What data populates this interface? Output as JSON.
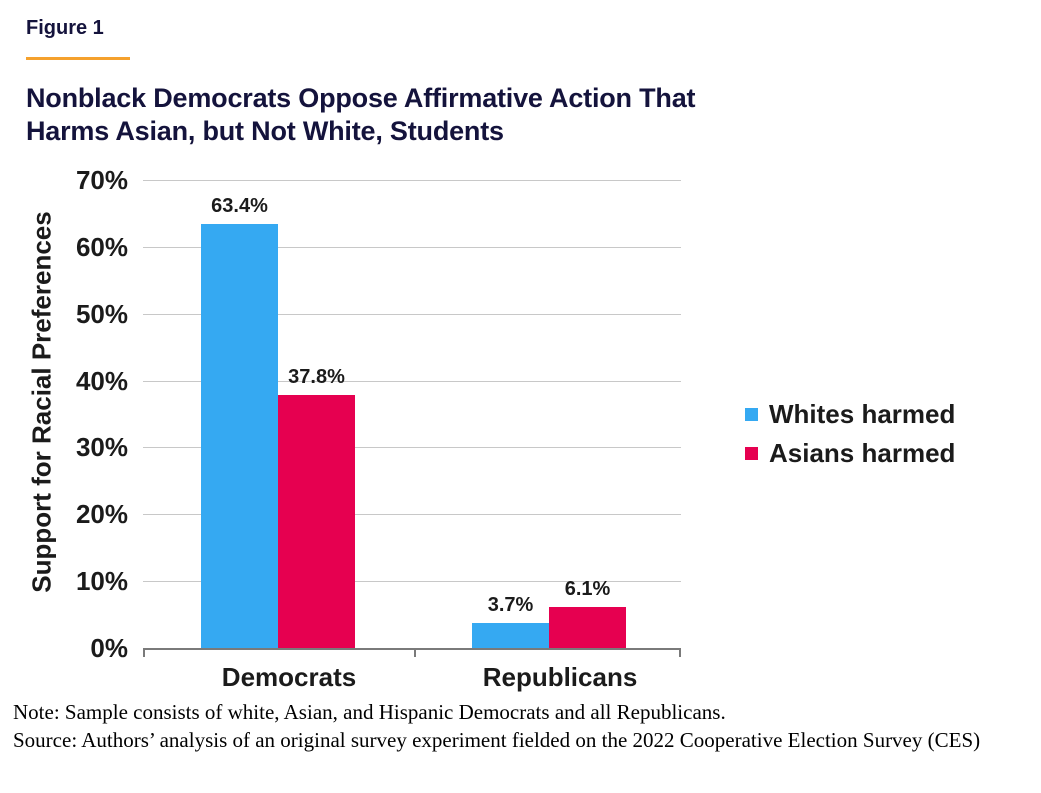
{
  "figure_label": "Figure 1",
  "title_lines": [
    "Nonblack Democrats Oppose Affirmative Action That",
    "Harms Asian, but Not White, Students"
  ],
  "chart_data": {
    "type": "bar",
    "title": "Nonblack Democrats Oppose Affirmative Action That Harms Asian, but Not White, Students",
    "categories": [
      "Democrats",
      "Republicans"
    ],
    "series": [
      {
        "name": "Whites harmed",
        "color": "#35a9f2",
        "values": [
          63.4,
          3.7
        ],
        "labels": [
          "63.4%",
          "3.7%"
        ]
      },
      {
        "name": "Asians harmed",
        "color": "#e60050",
        "values": [
          37.8,
          6.1
        ],
        "labels": [
          "37.8%",
          "6.1%"
        ]
      }
    ],
    "ylabel": "Support for Racial Preferences",
    "ylim": [
      0,
      70
    ],
    "yticks": [
      0,
      10,
      20,
      30,
      40,
      50,
      60,
      70
    ],
    "ytick_labels": [
      "0%",
      "10%",
      "20%",
      "30%",
      "40%",
      "50%",
      "60%",
      "70%"
    ],
    "grid": true,
    "legend_position": "right"
  },
  "note": "Note: Sample consists of white, Asian, and Hispanic Democrats and all Republicans.",
  "source": "Source: Authors’ analysis of an original survey experiment fielded on the 2022 Cooperative Election Survey (CES)",
  "colors": {
    "accent_orange": "#f5a12d",
    "title_navy": "#14133c",
    "bar_blue": "#35a9f2",
    "bar_red": "#e60050"
  }
}
